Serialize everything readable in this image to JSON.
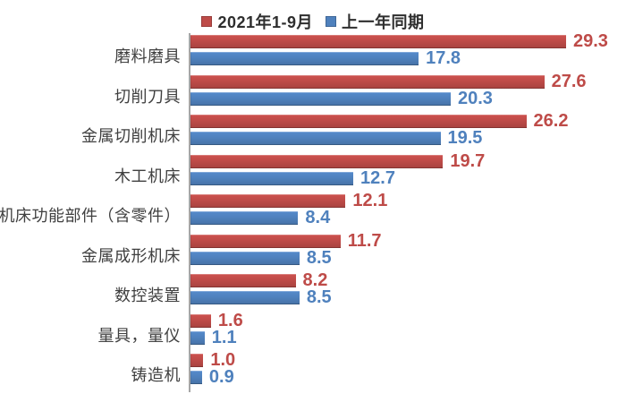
{
  "chart_data": {
    "type": "bar",
    "orientation": "horizontal",
    "title": "",
    "categories": [
      "磨料磨具",
      "切削刀具",
      "金属切削机床",
      "木工机床",
      "机床功能部件（含零件）",
      "金属成形机床",
      "数控装置",
      "量具，量仪",
      "铸造机"
    ],
    "series": [
      {
        "name": "2021年1-9月",
        "color": "#be4b48",
        "values": [
          29.3,
          27.6,
          26.2,
          19.7,
          12.1,
          11.7,
          8.2,
          1.6,
          1.0
        ]
      },
      {
        "name": "上一年同期",
        "color": "#4f81bd",
        "values": [
          17.8,
          20.3,
          19.5,
          12.7,
          8.4,
          8.5,
          8.5,
          1.1,
          0.9
        ]
      }
    ],
    "xlim": [
      0,
      30
    ],
    "value_labels": true,
    "value_label_decimals": 1,
    "legend_position": "top",
    "grid": false,
    "axis_color": "#a6a6a6",
    "background_color": "#ffffff"
  }
}
